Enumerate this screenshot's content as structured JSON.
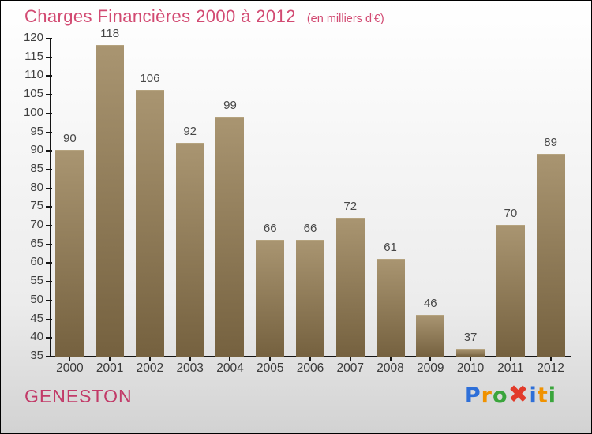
{
  "chart_data": {
    "type": "bar",
    "title": "Charges Financières 2000 à 2012",
    "subtitle": "(en milliers d'€)",
    "categories": [
      "2000",
      "2001",
      "2002",
      "2003",
      "2004",
      "2005",
      "2006",
      "2007",
      "2008",
      "2009",
      "2010",
      "2011",
      "2012"
    ],
    "values": [
      90,
      118,
      106,
      92,
      99,
      66,
      66,
      72,
      61,
      46,
      37,
      70,
      89
    ],
    "ylim": [
      35,
      120
    ],
    "ytick_step": 5,
    "grid": false,
    "legend": false,
    "value_labels": true,
    "bar_color_top": "#a99571",
    "bar_color_bottom": "#75613f"
  },
  "footer": {
    "location": "GENESTON",
    "logo": {
      "brand": "Proxiti",
      "letters": [
        {
          "ch": "P",
          "color": "#2e6fd8"
        },
        {
          "ch": "r",
          "color": "#f09200"
        },
        {
          "ch": "o",
          "color": "#3aa53c"
        },
        {
          "ch": "x",
          "glyph": "✖",
          "color": "#e23b2a",
          "emphasis": true
        },
        {
          "ch": "i",
          "color": "#2e6fd8"
        },
        {
          "ch": "t",
          "color": "#f09200"
        },
        {
          "ch": "i",
          "color": "#3aa53c"
        }
      ]
    }
  },
  "colors": {
    "title": "#d24a72",
    "location": "#c23a68",
    "label": "#474747",
    "axis": "#141414",
    "background_top": "#ffffff",
    "background_bottom": "#d2d2d2"
  }
}
